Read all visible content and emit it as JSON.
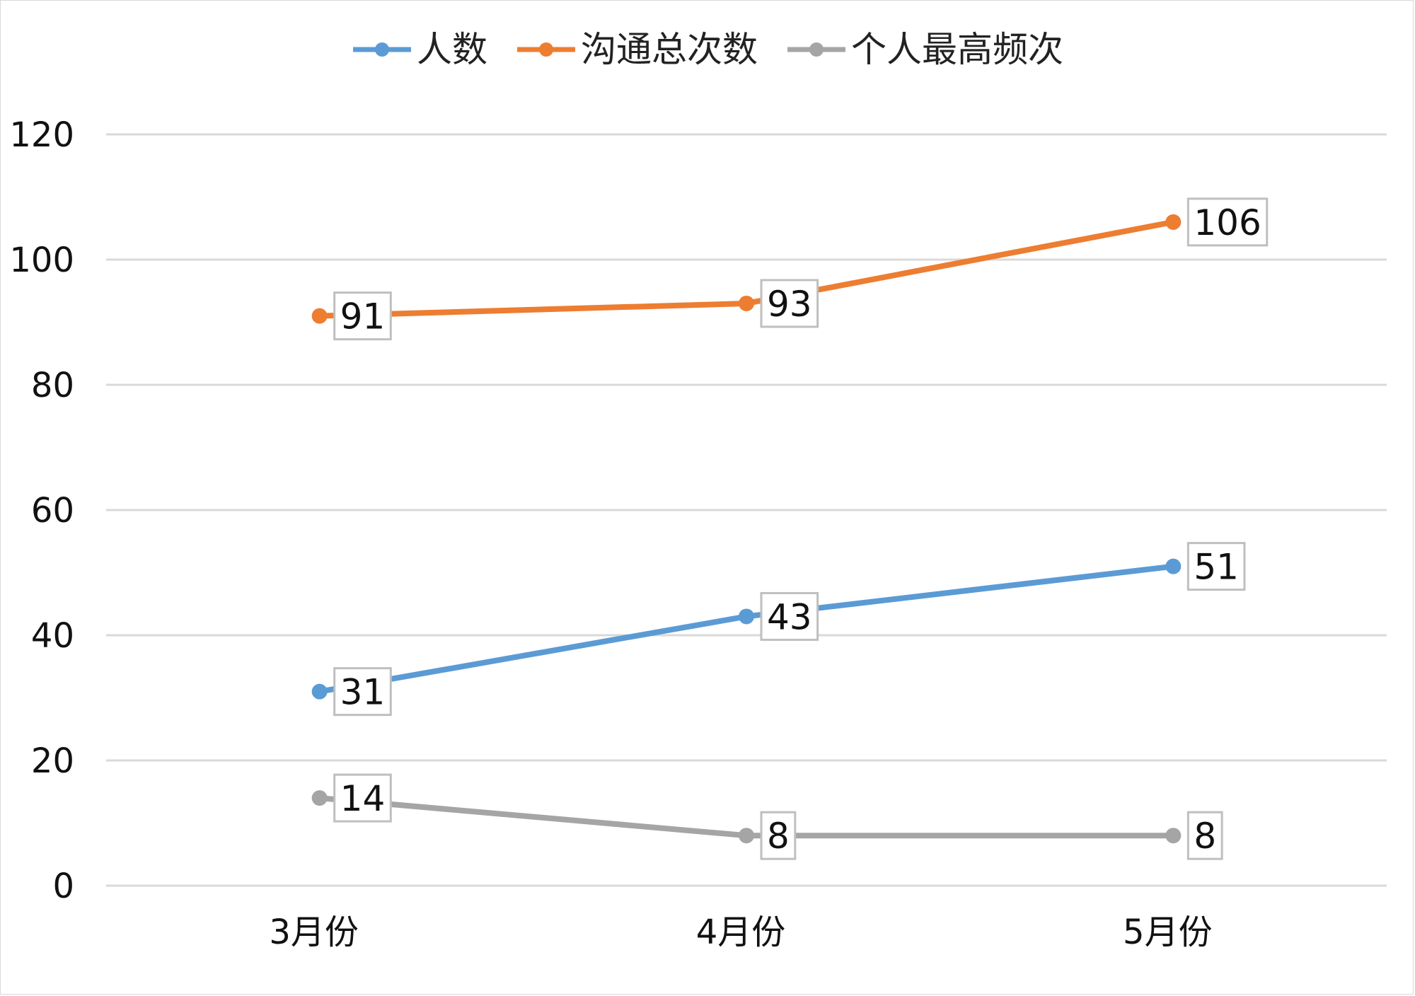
{
  "chart_data": {
    "type": "line",
    "title": "",
    "xlabel": "",
    "ylabel": "",
    "categories": [
      "3月份",
      "4月份",
      "5月份"
    ],
    "ylim": [
      0,
      120
    ],
    "yticks": [
      0,
      20,
      40,
      60,
      80,
      100,
      120
    ],
    "grid": true,
    "legend_position": "top",
    "series": [
      {
        "name": "人数",
        "values": [
          31,
          43,
          51
        ],
        "color": "#5B9BD5",
        "labels": [
          "31",
          "43",
          "51"
        ]
      },
      {
        "name": "沟通总次数",
        "values": [
          91,
          93,
          106
        ],
        "color": "#ED7D31",
        "labels": [
          "91",
          "93",
          "106"
        ]
      },
      {
        "name": "个人最高频次",
        "values": [
          14,
          8,
          8
        ],
        "color": "#A5A5A5",
        "labels": [
          "14",
          "8",
          "8"
        ]
      }
    ]
  }
}
